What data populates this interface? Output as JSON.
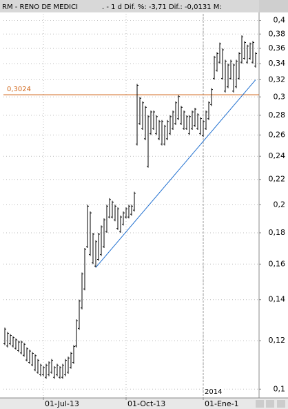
{
  "chart_data": {
    "type": "range",
    "title": "RM - RENO DE MEDICI",
    "subtitle": ". - 1 d Dif. %: -3,71 Dif.: -0,0131 M:",
    "categories": [
      null,
      null,
      null,
      null,
      null,
      null,
      null,
      null,
      null,
      null,
      null,
      null,
      null,
      null,
      "01-Jul-13",
      null,
      null,
      null,
      null,
      null,
      null,
      null,
      null,
      null,
      null,
      null,
      null,
      null,
      null,
      null,
      null,
      null,
      null,
      null,
      null,
      null,
      null,
      null,
      null,
      null,
      null,
      null,
      null,
      null,
      "01-Oct-13",
      null,
      null,
      null,
      null,
      null,
      null,
      null,
      null,
      null,
      null,
      null,
      null,
      null,
      null,
      null,
      null,
      null,
      null,
      null,
      null,
      null,
      null,
      null,
      null,
      null,
      null,
      null,
      "01-Ene-1",
      null,
      null,
      null,
      null,
      null,
      null,
      null,
      null,
      null,
      null,
      null,
      null,
      null,
      null,
      null,
      null,
      null,
      null,
      null
    ],
    "year_label": "2014",
    "low": [
      0.118,
      0.117,
      0.118,
      0.117,
      0.116,
      0.115,
      0.114,
      0.113,
      0.111,
      0.11,
      0.109,
      0.107,
      0.106,
      0.105,
      0.105,
      0.104,
      0.105,
      0.106,
      0.104,
      0.105,
      0.104,
      0.104,
      0.105,
      0.106,
      0.108,
      0.11,
      0.117,
      0.125,
      0.135,
      0.145,
      0.17,
      0.165,
      0.16,
      0.158,
      0.162,
      0.165,
      0.17,
      0.18,
      0.19,
      0.19,
      0.188,
      0.182,
      0.18,
      0.185,
      0.19,
      0.19,
      0.192,
      0.195,
      0.25,
      0.27,
      0.265,
      0.255,
      0.23,
      0.26,
      0.265,
      0.26,
      0.255,
      0.25,
      0.25,
      0.255,
      0.26,
      0.265,
      0.27,
      0.275,
      0.27,
      0.265,
      0.265,
      0.26,
      0.265,
      0.268,
      0.265,
      0.26,
      0.258,
      0.265,
      0.275,
      0.29,
      0.32,
      0.33,
      0.34,
      0.32,
      0.305,
      0.31,
      0.32,
      0.305,
      0.31,
      0.32,
      0.34,
      0.345,
      0.34,
      0.345,
      0.34,
      0.335
    ],
    "high": [
      0.126,
      0.124,
      0.123,
      0.122,
      0.121,
      0.12,
      0.12,
      0.119,
      0.117,
      0.116,
      0.115,
      0.114,
      0.112,
      0.11,
      0.109,
      0.11,
      0.111,
      0.112,
      0.109,
      0.11,
      0.109,
      0.11,
      0.112,
      0.113,
      0.115,
      0.118,
      0.13,
      0.14,
      0.155,
      0.17,
      0.2,
      0.195,
      0.18,
      0.175,
      0.18,
      0.185,
      0.19,
      0.2,
      0.205,
      0.203,
      0.2,
      0.198,
      0.192,
      0.195,
      0.198,
      0.2,
      0.2,
      0.21,
      0.315,
      0.3,
      0.295,
      0.29,
      0.28,
      0.285,
      0.285,
      0.28,
      0.275,
      0.275,
      0.27,
      0.275,
      0.28,
      0.285,
      0.295,
      0.302,
      0.29,
      0.285,
      0.28,
      0.28,
      0.285,
      0.288,
      0.282,
      0.278,
      0.275,
      0.285,
      0.295,
      0.31,
      0.35,
      0.355,
      0.368,
      0.36,
      0.345,
      0.34,
      0.345,
      0.34,
      0.345,
      0.355,
      0.378,
      0.37,
      0.365,
      0.368,
      0.37,
      0.355
    ],
    "color": "#000000",
    "log_scale": true,
    "grid": true,
    "ylim": [
      0.097,
      0.41
    ],
    "yticks": [
      {
        "value": 0.1,
        "label": "0,1"
      },
      {
        "value": 0.12,
        "label": "0,12"
      },
      {
        "value": 0.14,
        "label": "0,14"
      },
      {
        "value": 0.16,
        "label": "0,16"
      },
      {
        "value": 0.18,
        "label": "0,18"
      },
      {
        "value": 0.2,
        "label": "0,2"
      },
      {
        "value": 0.22,
        "label": "0,22"
      },
      {
        "value": 0.24,
        "label": "0,24"
      },
      {
        "value": 0.26,
        "label": "0,26"
      },
      {
        "value": 0.28,
        "label": "0,28"
      },
      {
        "value": 0.3,
        "label": "0,3"
      },
      {
        "value": 0.32,
        "label": "0,32"
      },
      {
        "value": 0.34,
        "label": "0,34"
      },
      {
        "value": 0.36,
        "label": "0,36"
      },
      {
        "value": 0.38,
        "label": "0,38"
      },
      {
        "value": 0.4,
        "label": "0,4"
      }
    ],
    "hline": {
      "value": 0.3024,
      "label": "0,3024",
      "color": "#d2691e"
    },
    "trendline": {
      "values": [
        0.158,
        0.32
      ],
      "color": "#1f6fd0"
    }
  }
}
